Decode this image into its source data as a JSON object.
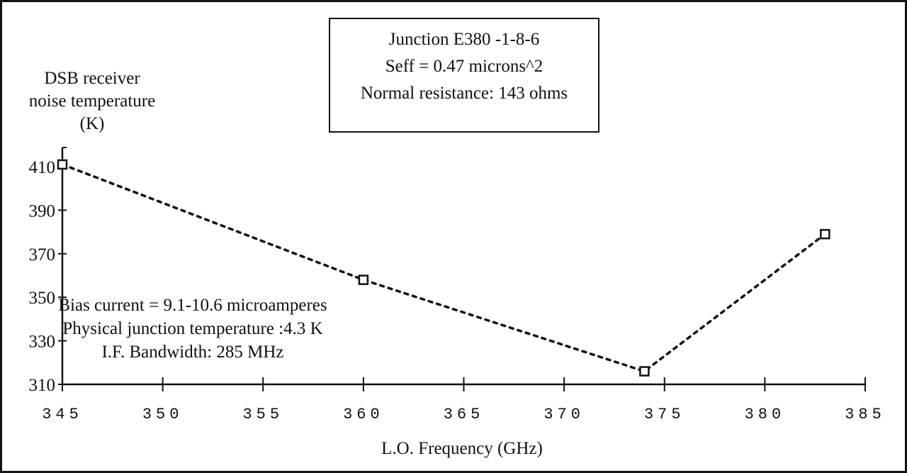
{
  "chart_data": {
    "type": "line",
    "info_box": [
      "Junction E380 -1-8-6",
      "Seff = 0.47 microns^2",
      "Normal resistance: 143 ohms"
    ],
    "ylabel": [
      "DSB receiver",
      "noise temperature",
      "(K)"
    ],
    "xlabel": "L.O. Frequency (GHz)",
    "conditions": [
      "Bias current = 9.1-10.6 microamperes",
      "Physical junction temperature :4.3 K",
      "I.F. Bandwidth: 285 MHz"
    ],
    "xlim": [
      345,
      385
    ],
    "ylim": [
      310,
      420
    ],
    "x_ticks": [
      345,
      350,
      355,
      360,
      365,
      370,
      375,
      380,
      385
    ],
    "y_ticks": [
      310,
      330,
      350,
      370,
      390,
      410
    ],
    "series": [
      {
        "x": [
          345,
          360,
          374,
          383
        ],
        "y": [
          411,
          358,
          316,
          379
        ],
        "marker": "square",
        "line_style": "dashed",
        "color": "#111111"
      }
    ]
  }
}
